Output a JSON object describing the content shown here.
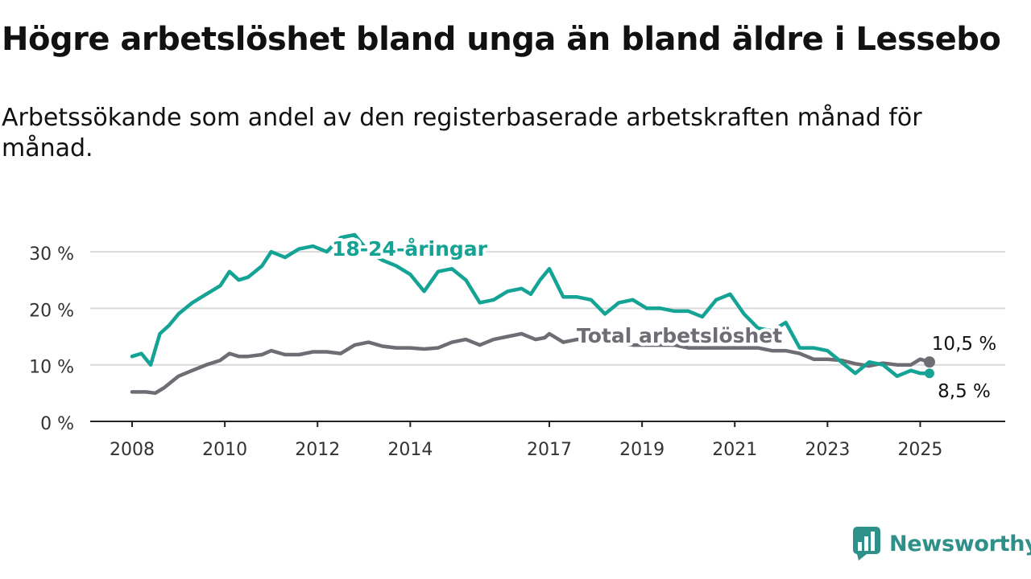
{
  "title": "Högre arbetslöshet bland unga än bland äldre i Lessebo",
  "subtitle": "Arbetssökande som andel av den registerbaserade arbetskraften månad för månad.",
  "brand": {
    "name": "Newsworthy",
    "color": "#2f8f89",
    "icon": "bar-chart-logo-icon"
  },
  "chart_data": {
    "type": "line",
    "title": "Högre arbetslöshet bland unga än bland äldre i Lessebo",
    "subtitle": "Arbetssökande som andel av den registerbaserade arbetskraften månad för månad.",
    "xlabel": "",
    "ylabel": "",
    "xlim": [
      2008,
      2026
    ],
    "ylim": [
      0,
      33
    ],
    "x_ticks": [
      2008,
      2010,
      2012,
      2014,
      2017,
      2019,
      2021,
      2023,
      2025
    ],
    "x_tick_labels": [
      "2008",
      "2010",
      "2012",
      "2014",
      "2017",
      "2019",
      "2021",
      "2023",
      "2025"
    ],
    "y_ticks": [
      0,
      10,
      20,
      30
    ],
    "y_tick_labels": [
      "0 %",
      "10 %",
      "20 %",
      "30 %"
    ],
    "grid": true,
    "series": [
      {
        "name": "18-24-åringar",
        "color": "#14a394",
        "x": [
          2008.0,
          2008.2,
          2008.4,
          2008.6,
          2008.8,
          2009.0,
          2009.3,
          2009.6,
          2009.9,
          2010.1,
          2010.3,
          2010.5,
          2010.8,
          2011.0,
          2011.3,
          2011.6,
          2011.9,
          2012.2,
          2012.5,
          2012.8,
          2013.1,
          2013.4,
          2013.7,
          2014.0,
          2014.3,
          2014.6,
          2014.9,
          2015.2,
          2015.5,
          2015.8,
          2016.1,
          2016.4,
          2016.6,
          2016.8,
          2017.0,
          2017.3,
          2017.6,
          2017.9,
          2018.2,
          2018.5,
          2018.8,
          2019.1,
          2019.4,
          2019.7,
          2020.0,
          2020.3,
          2020.6,
          2020.9,
          2021.2,
          2021.5,
          2021.8,
          2022.1,
          2022.4,
          2022.7,
          2023.0,
          2023.3,
          2023.6,
          2023.9,
          2024.2,
          2024.5,
          2024.8,
          2025.0,
          2025.2
        ],
        "values": [
          11.5,
          12.0,
          10.0,
          15.5,
          17.0,
          19.0,
          21.0,
          22.5,
          24.0,
          26.5,
          25.0,
          25.5,
          27.5,
          30.0,
          29.0,
          30.5,
          31.0,
          30.0,
          32.5,
          33.0,
          30.0,
          28.5,
          27.5,
          26.0,
          23.0,
          26.5,
          27.0,
          25.0,
          21.0,
          21.5,
          23.0,
          23.5,
          22.5,
          25.0,
          27.0,
          22.0,
          22.0,
          21.5,
          19.0,
          21.0,
          21.5,
          20.0,
          20.0,
          19.5,
          19.5,
          18.5,
          21.5,
          22.5,
          19.0,
          16.5,
          16.0,
          17.5,
          13.0,
          13.0,
          12.5,
          10.5,
          8.5,
          10.5,
          10.0,
          8.0,
          9.0,
          8.5,
          8.5
        ]
      },
      {
        "name": "Total arbetslöshet",
        "color": "#6e6d73",
        "x": [
          2008.0,
          2008.3,
          2008.5,
          2008.7,
          2009.0,
          2009.3,
          2009.6,
          2009.9,
          2010.1,
          2010.3,
          2010.5,
          2010.8,
          2011.0,
          2011.3,
          2011.6,
          2011.9,
          2012.2,
          2012.5,
          2012.8,
          2013.1,
          2013.4,
          2013.7,
          2014.0,
          2014.3,
          2014.6,
          2014.9,
          2015.2,
          2015.5,
          2015.8,
          2016.1,
          2016.4,
          2016.7,
          2016.9,
          2017.0,
          2017.3,
          2017.6,
          2017.9,
          2018.2,
          2018.5,
          2018.8,
          2019.1,
          2019.4,
          2019.7,
          2020.0,
          2020.3,
          2020.6,
          2020.9,
          2021.2,
          2021.5,
          2021.8,
          2022.1,
          2022.4,
          2022.7,
          2023.0,
          2023.3,
          2023.6,
          2023.9,
          2024.2,
          2024.5,
          2024.8,
          2025.0,
          2025.2
        ],
        "values": [
          5.2,
          5.2,
          5.0,
          6.0,
          8.0,
          9.0,
          10.0,
          10.8,
          12.0,
          11.5,
          11.5,
          11.8,
          12.5,
          11.8,
          11.8,
          12.3,
          12.3,
          12.0,
          13.5,
          14.0,
          13.3,
          13.0,
          13.0,
          12.8,
          13.0,
          14.0,
          14.5,
          13.5,
          14.5,
          15.0,
          15.5,
          14.5,
          14.8,
          15.5,
          14.0,
          14.5,
          14.5,
          14.0,
          14.0,
          13.5,
          13.5,
          13.5,
          13.5,
          13.0,
          13.0,
          13.0,
          13.0,
          13.0,
          13.0,
          12.5,
          12.5,
          12.0,
          11.0,
          11.0,
          10.8,
          10.2,
          9.8,
          10.3,
          10.0,
          10.0,
          11.0,
          10.5
        ]
      }
    ],
    "labels": [
      {
        "text": "18-24-åringar",
        "series": "18-24-åringar"
      },
      {
        "text": "Total arbetslöshet",
        "series": "Total arbetslöshet"
      }
    ],
    "end_values": [
      {
        "text": "10,5 %",
        "series": "Total arbetslöshet"
      },
      {
        "text": "8,5 %",
        "series": "18-24-åringar"
      }
    ]
  }
}
